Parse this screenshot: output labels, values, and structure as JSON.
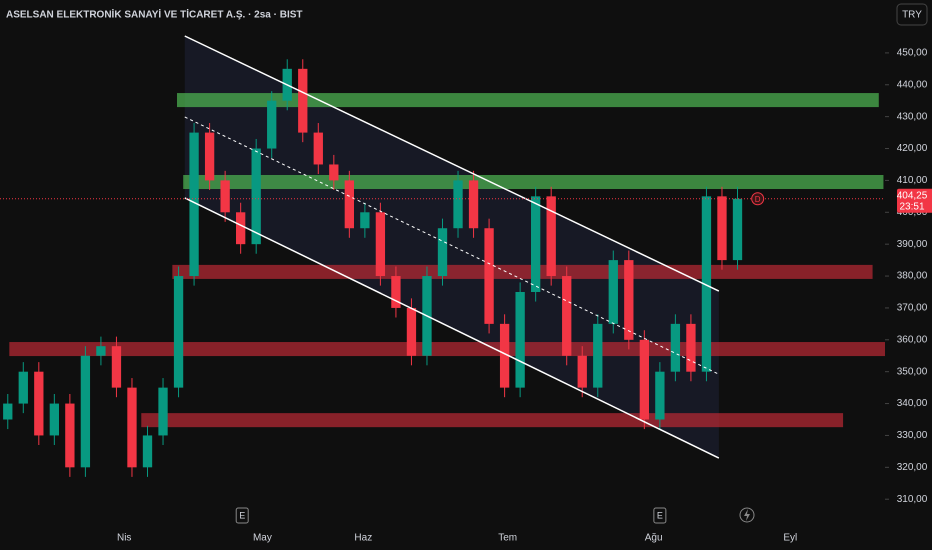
{
  "chart_data": {
    "type": "candlestick",
    "title": "ASELSAN ELEKTRONİK SANAYİ VE TİCARET A.Ş. · 2sa · BIST",
    "currency": "TRY",
    "up_color": "#089981",
    "down_color": "#f23645",
    "open": [
      335,
      340,
      350,
      330,
      340,
      320,
      355,
      358,
      345,
      320,
      330,
      345,
      380,
      425,
      410,
      400,
      390,
      420,
      435,
      445,
      425,
      415,
      410,
      395,
      400,
      380,
      370,
      355,
      380,
      395,
      410,
      395,
      365,
      345,
      375,
      405,
      380,
      355,
      345,
      365,
      385,
      360,
      335,
      350,
      365,
      350,
      405,
      385
    ],
    "high": [
      343,
      353,
      353,
      343,
      343,
      358,
      361,
      361,
      348,
      333,
      348,
      383,
      428,
      428,
      413,
      403,
      423,
      438,
      448,
      448,
      428,
      418,
      413,
      403,
      403,
      383,
      373,
      383,
      398,
      413,
      413,
      398,
      368,
      378,
      408,
      408,
      383,
      358,
      368,
      388,
      388,
      363,
      353,
      368,
      368,
      408,
      408,
      408
    ],
    "low": [
      332,
      337,
      327,
      327,
      317,
      317,
      352,
      342,
      317,
      317,
      327,
      342,
      377,
      407,
      397,
      387,
      387,
      417,
      432,
      422,
      412,
      407,
      392,
      392,
      377,
      367,
      352,
      352,
      377,
      392,
      392,
      362,
      342,
      342,
      372,
      377,
      352,
      342,
      342,
      362,
      357,
      332,
      332,
      347,
      347,
      347,
      382,
      382
    ],
    "close": [
      340,
      350,
      330,
      340,
      320,
      355,
      358,
      345,
      320,
      330,
      345,
      380,
      425,
      410,
      400,
      390,
      420,
      435,
      445,
      425,
      415,
      410,
      395,
      400,
      380,
      370,
      355,
      380,
      395,
      410,
      395,
      365,
      345,
      375,
      405,
      380,
      355,
      345,
      365,
      385,
      360,
      335,
      350,
      365,
      350,
      405,
      385,
      404.25
    ],
    "xlim": [
      0,
      57
    ],
    "xticks": [
      {
        "value": 8.0,
        "label": "Nis"
      },
      {
        "value": 16.9,
        "label": "May"
      },
      {
        "value": 23.4,
        "label": "Haz"
      },
      {
        "value": 32.7,
        "label": "Tem"
      },
      {
        "value": 42.1,
        "label": "Ağu"
      },
      {
        "value": 50.9,
        "label": "Eyl"
      }
    ],
    "ylim": [
      306.3,
      455.3
    ],
    "yticks": [
      {
        "value": 310,
        "label": "310,00"
      },
      {
        "value": 320,
        "label": "320,00"
      },
      {
        "value": 330,
        "label": "330,00"
      },
      {
        "value": 340,
        "label": "340,00"
      },
      {
        "value": 350,
        "label": "350,00"
      },
      {
        "value": 360,
        "label": "360,00"
      },
      {
        "value": 370,
        "label": "370,00"
      },
      {
        "value": 380,
        "label": "380,00"
      },
      {
        "value": 390,
        "label": "390,00"
      },
      {
        "value": 400,
        "label": "400,00"
      },
      {
        "value": 410,
        "label": "410,00"
      },
      {
        "value": 420,
        "label": "420,00"
      },
      {
        "value": 430,
        "label": "430,00"
      },
      {
        "value": 440,
        "label": "440,00"
      },
      {
        "value": 450,
        "label": "450,00"
      }
    ],
    "zones": [
      {
        "x": [
          11.4,
          56.6
        ],
        "y": [
          433.0,
          437.4
        ],
        "color": "#4caf50"
      },
      {
        "x": [
          11.8,
          56.9
        ],
        "y": [
          407.3,
          411.7
        ],
        "color": "#4caf50"
      },
      {
        "x": [
          11.1,
          56.2
        ],
        "y": [
          379.1,
          383.5
        ],
        "color": "#b22833"
      },
      {
        "x": [
          0.6,
          57
        ],
        "y": [
          354.9,
          359.3
        ],
        "color": "#b22833"
      },
      {
        "x": [
          9.1,
          54.3
        ],
        "y": [
          332.6,
          337.0
        ],
        "color": "#b22833"
      }
    ],
    "channel": {
      "upper": {
        "x": [
          11.9,
          46.3
        ],
        "y": [
          455.3,
          375.3
        ]
      },
      "middle": {
        "x": [
          11.9,
          46.3
        ],
        "y": [
          429.9,
          349.2
        ]
      },
      "lower": {
        "x": [
          11.9,
          46.3
        ],
        "y": [
          404.5,
          322.9
        ]
      }
    },
    "last_price": {
      "value": 404.25,
      "label": "404,25"
    },
    "countdown": "23:51",
    "dividend_marker": {
      "x": 48.8,
      "label": "D"
    },
    "events": [
      {
        "x": 15.6,
        "label": "E"
      },
      {
        "x": 42.5,
        "label": "E"
      }
    ]
  }
}
